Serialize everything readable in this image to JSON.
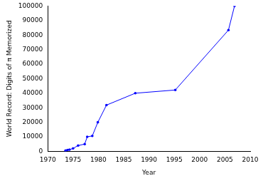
{
  "chart_data": {
    "type": "line",
    "x_label": "Year",
    "y_label": "World Record: Digits of π Memorized",
    "x": [
      1973.5,
      1973.9,
      1974.3,
      1975.0,
      1976.0,
      1977.3,
      1977.8,
      1978.8,
      1979.9,
      1981.6,
      1987.3,
      1995.2,
      2005.7,
      2006.9
    ],
    "values": [
      500,
      930,
      1200,
      2000,
      4000,
      5000,
      10000,
      10600,
      20000,
      31800,
      40000,
      42200,
      83400,
      100000
    ],
    "color": "#0000ff",
    "marker": "circle",
    "xlim": [
      1970,
      2010
    ],
    "xticks": [
      1970,
      1975,
      1980,
      1985,
      1990,
      1995,
      2000,
      2005,
      2010
    ],
    "ylim": [
      0,
      100000
    ],
    "yticks": [
      0,
      10000,
      20000,
      30000,
      40000,
      50000,
      60000,
      70000,
      80000,
      90000,
      100000
    ],
    "grid": false
  }
}
